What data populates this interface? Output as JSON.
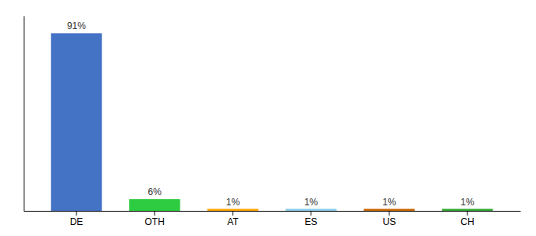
{
  "chart_data": {
    "type": "bar",
    "categories": [
      "DE",
      "OTH",
      "AT",
      "ES",
      "US",
      "CH"
    ],
    "values": [
      91,
      6,
      1,
      1,
      1,
      1
    ],
    "value_labels": [
      "91%",
      "6%",
      "1%",
      "1%",
      "1%",
      "1%"
    ],
    "colors": [
      "#4472C4",
      "#2ECC40",
      "#FFA500",
      "#87CEEB",
      "#CC6600",
      "#33AA33"
    ],
    "ylim": [
      0,
      100
    ],
    "grid": false,
    "data_labels": true,
    "tick_labels": "x"
  }
}
